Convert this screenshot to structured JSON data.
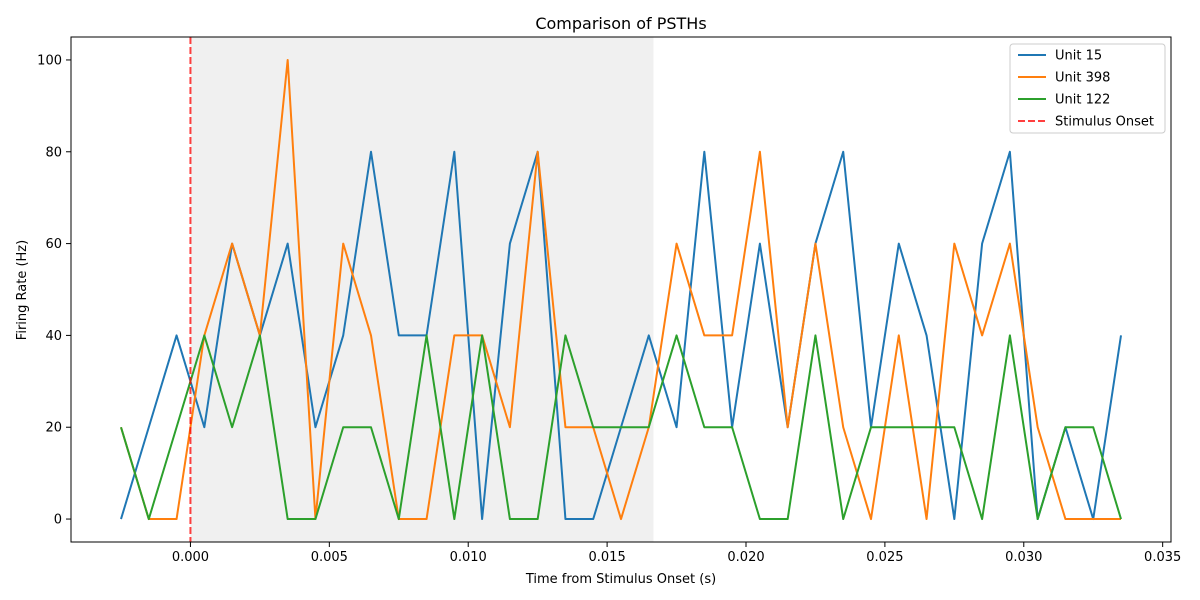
{
  "chart_data": {
    "type": "line",
    "title": "Comparison of PSTHs",
    "xlabel": "Time from Stimulus Onset (s)",
    "ylabel": "Firing Rate (Hz)",
    "xlim": [
      -0.0043,
      0.0353
    ],
    "ylim": [
      -5,
      105
    ],
    "xticks": [
      0.0,
      0.005,
      0.01,
      0.015,
      0.02,
      0.025,
      0.03,
      0.035
    ],
    "xtick_labels": [
      "0.000",
      "0.005",
      "0.010",
      "0.015",
      "0.020",
      "0.025",
      "0.030",
      "0.035"
    ],
    "yticks": [
      0,
      20,
      40,
      60,
      80,
      100
    ],
    "ytick_labels": [
      "0",
      "20",
      "40",
      "60",
      "80",
      "100"
    ],
    "x": [
      -0.0025,
      -0.0015,
      -0.0005,
      0.0005,
      0.0015,
      0.0025,
      0.0035,
      0.0045,
      0.0055,
      0.0065,
      0.0075,
      0.0085,
      0.0095,
      0.0105,
      0.0115,
      0.0125,
      0.0135,
      0.0145,
      0.0155,
      0.0165,
      0.0175,
      0.0185,
      0.0195,
      0.0205,
      0.0215,
      0.0225,
      0.0235,
      0.0245,
      0.0255,
      0.0265,
      0.0275,
      0.0285,
      0.0295,
      0.0305,
      0.0315,
      0.0325,
      0.0335
    ],
    "series": [
      {
        "name": "Unit 15",
        "color": "#1f77b4",
        "values": [
          0,
          20,
          40,
          20,
          60,
          40,
          60,
          20,
          40,
          80,
          40,
          40,
          80,
          0,
          60,
          80,
          0,
          0,
          20,
          40,
          20,
          80,
          20,
          60,
          20,
          60,
          80,
          20,
          60,
          40,
          0,
          60,
          80,
          0,
          20,
          0,
          40
        ]
      },
      {
        "name": "Unit 398",
        "color": "#ff7f0e",
        "values": [
          20,
          0,
          0,
          40,
          60,
          40,
          100,
          0,
          60,
          40,
          0,
          0,
          40,
          40,
          20,
          80,
          20,
          20,
          0,
          20,
          60,
          40,
          40,
          80,
          20,
          60,
          20,
          0,
          40,
          0,
          60,
          40,
          60,
          20,
          0,
          0,
          0
        ]
      },
      {
        "name": "Unit 122",
        "color": "#2ca02c",
        "values": [
          20,
          0,
          20,
          40,
          20,
          40,
          0,
          0,
          20,
          20,
          0,
          40,
          0,
          40,
          0,
          0,
          40,
          20,
          20,
          20,
          40,
          20,
          20,
          0,
          0,
          40,
          0,
          20,
          20,
          20,
          20,
          0,
          40,
          0,
          20,
          20,
          0
        ]
      }
    ],
    "stimulus_line": {
      "name": "Stimulus Onset",
      "x": 0.0,
      "color": "#ff0000",
      "style": "dashed"
    },
    "shaded_region": {
      "x_start": 0.0,
      "x_end": 0.01667,
      "color": "#f0f0f0"
    },
    "legend": {
      "placement": "top-right",
      "entries": [
        "Unit 15",
        "Unit 398",
        "Unit 122",
        "Stimulus Onset"
      ]
    },
    "grid": false
  }
}
